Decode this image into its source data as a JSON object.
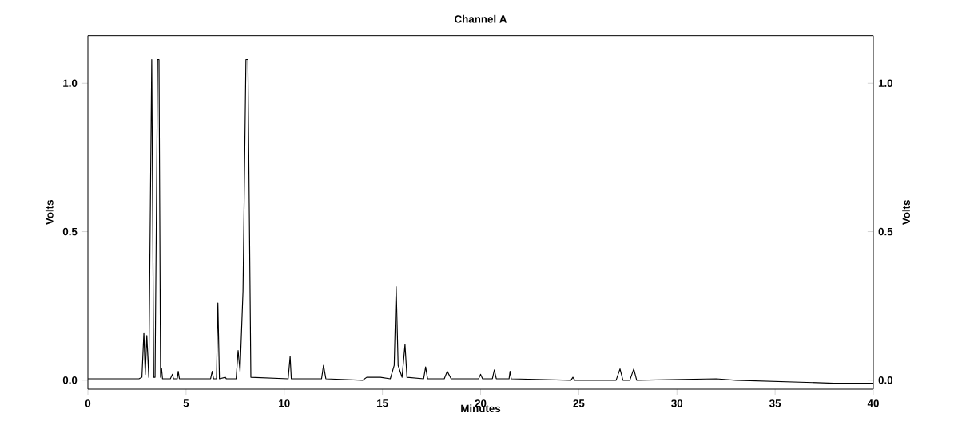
{
  "chart_data": {
    "type": "line",
    "title": "Channel A",
    "xlabel": "Minutes",
    "ylabel": "Volts",
    "y2label": "Volts",
    "xlim": [
      0,
      40
    ],
    "xticks": [
      0,
      5,
      10,
      15,
      20,
      25,
      30,
      35,
      40
    ],
    "ylim": [
      -0.03,
      1.16
    ],
    "yticks": [
      {
        "value": 0,
        "label": "0.0"
      },
      {
        "value": 0.5,
        "label": "0.5"
      },
      {
        "value": 1,
        "label": "1.0"
      }
    ],
    "y2lim": [
      -0.03,
      1.16
    ],
    "y2ticks": [
      {
        "value": 0,
        "label": "0.0"
      },
      {
        "value": 0.5,
        "label": "0.5"
      },
      {
        "value": 1,
        "label": "1.0"
      }
    ],
    "grid": false,
    "marker": "none",
    "line_style": "solid",
    "series": [
      {
        "color": "#000000",
        "x": [
          0,
          2.6,
          2.75,
          2.85,
          2.92,
          3.0,
          3.1,
          3.25,
          3.35,
          3.42,
          3.55,
          3.62,
          3.7,
          3.75,
          3.8,
          4.2,
          4.3,
          4.36,
          4.55,
          4.6,
          4.66,
          6.25,
          6.33,
          6.4,
          6.55,
          6.62,
          6.7,
          7.0,
          7.05,
          7.55,
          7.65,
          7.75,
          7.9,
          8.05,
          8.15,
          8.3,
          10.2,
          10.3,
          10.36,
          11.9,
          12.0,
          12.12,
          14.0,
          14.2,
          14.9,
          15.4,
          15.6,
          15.7,
          15.8,
          16.0,
          16.15,
          16.25,
          17.1,
          17.2,
          17.3,
          18.15,
          18.3,
          18.5,
          19.9,
          20.0,
          20.1,
          20.6,
          20.7,
          20.8,
          21.45,
          21.5,
          21.56,
          24.6,
          24.7,
          24.8,
          26.9,
          27.1,
          27.25,
          27.6,
          27.8,
          27.95,
          32.0,
          33.0,
          38.0,
          40
        ],
        "values": [
          0.005,
          0.005,
          0.01,
          0.16,
          0.02,
          0.15,
          0.01,
          1.08,
          0.01,
          0.01,
          1.08,
          1.08,
          0.01,
          0.04,
          0.005,
          0.005,
          0.02,
          0.005,
          0.005,
          0.03,
          0.005,
          0.005,
          0.03,
          0.005,
          0.005,
          0.26,
          0.005,
          0.01,
          0.005,
          0.005,
          0.1,
          0.03,
          0.3,
          1.08,
          1.08,
          0.01,
          0.005,
          0.08,
          0.005,
          0.005,
          0.05,
          0.005,
          0.0,
          0.01,
          0.01,
          0.005,
          0.05,
          0.315,
          0.05,
          0.01,
          0.12,
          0.01,
          0.005,
          0.045,
          0.005,
          0.005,
          0.03,
          0.005,
          0.005,
          0.02,
          0.005,
          0.005,
          0.035,
          0.005,
          0.005,
          0.03,
          0.005,
          0.0,
          0.01,
          0.0,
          0.0,
          0.038,
          0.0,
          0.0,
          0.038,
          0.0,
          0.005,
          0.0,
          -0.01,
          -0.01
        ]
      }
    ]
  }
}
